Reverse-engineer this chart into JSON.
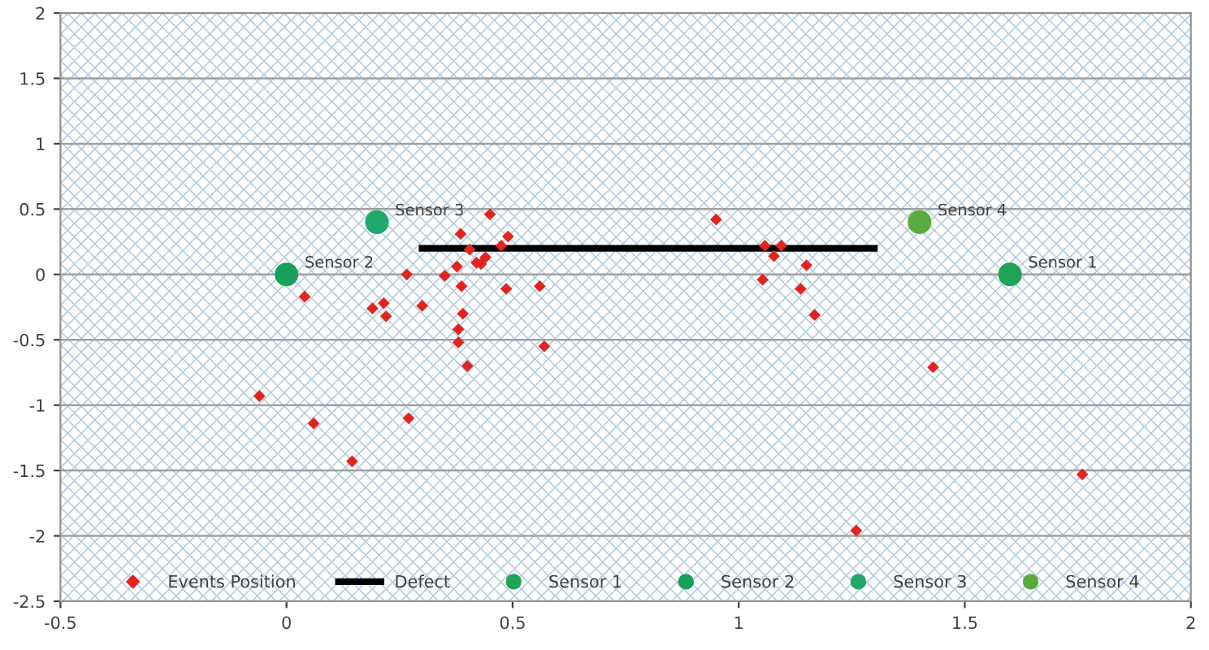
{
  "chart_data": {
    "type": "scatter",
    "xlim": [
      -0.5,
      2
    ],
    "ylim": [
      -2.5,
      2
    ],
    "xticks": [
      {
        "value": -0.5,
        "label": "-0.5"
      },
      0,
      0.5,
      1,
      1.5,
      2
    ],
    "yticks": [
      {
        "value": -2.5,
        "label": "-2.5"
      },
      -2,
      {
        "value": -1.5,
        "label": "-1.5"
      },
      -1,
      {
        "value": -0.5,
        "label": "-0.5"
      },
      0,
      0.5,
      1,
      1.5,
      2
    ],
    "grid": "y",
    "legend": "bottom",
    "series": [
      {
        "name": "Events Position",
        "marker": "diamond",
        "color": "#e2241f",
        "x": [
          -0.06,
          0.04,
          0.06,
          0.145,
          0.19,
          0.215,
          0.22,
          0.27,
          0.266,
          0.3,
          0.35,
          0.377,
          0.385,
          0.387,
          0.39,
          0.38,
          0.38,
          0.4,
          0.405,
          0.42,
          0.43,
          0.44,
          0.45,
          0.475,
          0.49,
          0.486,
          0.56,
          0.57,
          0.95,
          1.058,
          1.094,
          1.078,
          1.15,
          1.053,
          1.137,
          1.168,
          1.43,
          1.26,
          1.76
        ],
        "values": [
          -0.93,
          -0.17,
          -1.14,
          -1.43,
          -0.26,
          -0.22,
          -0.32,
          -1.1,
          0.0,
          -0.24,
          -0.01,
          0.06,
          0.31,
          -0.09,
          -0.3,
          -0.42,
          -0.52,
          -0.7,
          0.19,
          0.09,
          0.08,
          0.13,
          0.46,
          0.22,
          0.29,
          -0.11,
          -0.09,
          -0.55,
          0.42,
          0.22,
          0.22,
          0.14,
          0.07,
          -0.04,
          -0.11,
          -0.31,
          -0.71,
          -1.96,
          -1.53
        ]
      },
      {
        "name": "Defect",
        "type": "line",
        "marker": "none",
        "color": "#000000",
        "x": [
          0.3,
          1.3
        ],
        "values": [
          0.2,
          0.2
        ]
      },
      {
        "name": "Sensor 1",
        "marker": "circle",
        "color": "#1fa356",
        "x": [
          1.6
        ],
        "values": [
          0
        ]
      },
      {
        "name": "Sensor 2",
        "marker": "circle",
        "color": "#17a05a",
        "x": [
          0
        ],
        "values": [
          0
        ]
      },
      {
        "name": "Sensor 3",
        "marker": "circle",
        "color": "#1fa86a",
        "x": [
          0.2
        ],
        "values": [
          0.4
        ]
      },
      {
        "name": "Sensor 4",
        "marker": "circle",
        "color": "#5aab3c",
        "x": [
          1.4
        ],
        "values": [
          0.4
        ]
      }
    ]
  }
}
